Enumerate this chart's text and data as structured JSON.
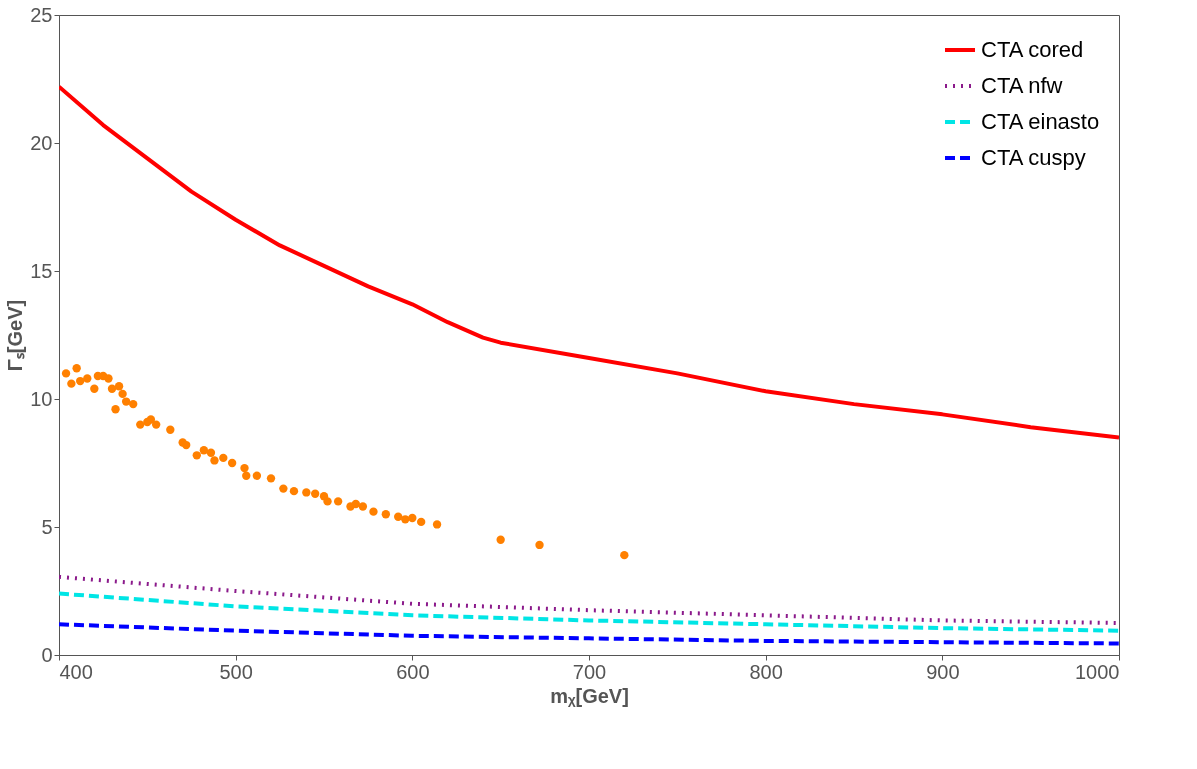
{
  "chart_data": {
    "type": "line",
    "xlabel": "mᵪ[GeV]",
    "ylabel": "Γₛ[GeV]",
    "xlim": [
      400,
      1000
    ],
    "ylim": [
      0,
      25
    ],
    "xticks": [
      400,
      500,
      600,
      700,
      800,
      900,
      1000
    ],
    "yticks": [
      0,
      5,
      10,
      15,
      20,
      25
    ],
    "grid": false,
    "legend": "top right",
    "series": [
      {
        "name": "CTA cored",
        "color": "#ff0000",
        "line_style": "solid",
        "x": [
          400,
          425,
          450,
          475,
          500,
          525,
          550,
          575,
          600,
          620,
          640,
          650,
          700,
          750,
          800,
          850,
          900,
          950,
          1000
        ],
        "values": [
          22.2,
          20.7,
          19.4,
          18.1,
          17.0,
          16.0,
          15.2,
          14.4,
          13.7,
          13.0,
          12.4,
          12.2,
          11.6,
          11.0,
          10.3,
          9.8,
          9.4,
          8.9,
          8.5
        ]
      },
      {
        "name": "CTA nfw",
        "color": "#8b1a8b",
        "line_style": "dotted",
        "x": [
          400,
          500,
          600,
          700,
          800,
          900,
          1000
        ],
        "values": [
          3.05,
          2.5,
          2.0,
          1.75,
          1.55,
          1.35,
          1.25
        ]
      },
      {
        "name": "CTA einasto",
        "color": "#00e5e5",
        "line_style": "dashed",
        "x": [
          400,
          500,
          600,
          700,
          800,
          900,
          1000
        ],
        "values": [
          2.4,
          1.9,
          1.55,
          1.35,
          1.2,
          1.05,
          0.95
        ]
      },
      {
        "name": "CTA cuspy",
        "color": "#0000ff",
        "line_style": "dashed",
        "x": [
          400,
          500,
          600,
          700,
          800,
          900,
          1000
        ],
        "values": [
          1.2,
          0.95,
          0.75,
          0.65,
          0.55,
          0.5,
          0.45
        ]
      },
      {
        "type": "scatter",
        "marker": "circle",
        "color": "#ff8000",
        "x": [
          404,
          407,
          410,
          412,
          416,
          420,
          422,
          425,
          428,
          430,
          432,
          434,
          436,
          438,
          442,
          446,
          450,
          452,
          455,
          463,
          470,
          472,
          478,
          482,
          486,
          488,
          493,
          498,
          505,
          506,
          512,
          520,
          527,
          533,
          540,
          545,
          550,
          552,
          558,
          565,
          568,
          572,
          578,
          585,
          592,
          596,
          600,
          605,
          614,
          650,
          672,
          720
        ],
        "values": [
          11.0,
          10.6,
          11.2,
          10.7,
          10.8,
          10.4,
          10.9,
          10.9,
          10.8,
          10.4,
          9.6,
          10.5,
          10.2,
          9.9,
          9.8,
          9.0,
          9.1,
          9.2,
          9.0,
          8.8,
          8.3,
          8.2,
          7.8,
          8.0,
          7.9,
          7.6,
          7.7,
          7.5,
          7.3,
          7.0,
          7.0,
          6.9,
          6.5,
          6.4,
          6.35,
          6.3,
          6.2,
          6.0,
          6.0,
          5.8,
          5.9,
          5.8,
          5.6,
          5.5,
          5.4,
          5.3,
          5.35,
          5.2,
          5.1,
          4.5,
          4.3,
          3.9
        ]
      }
    ]
  }
}
